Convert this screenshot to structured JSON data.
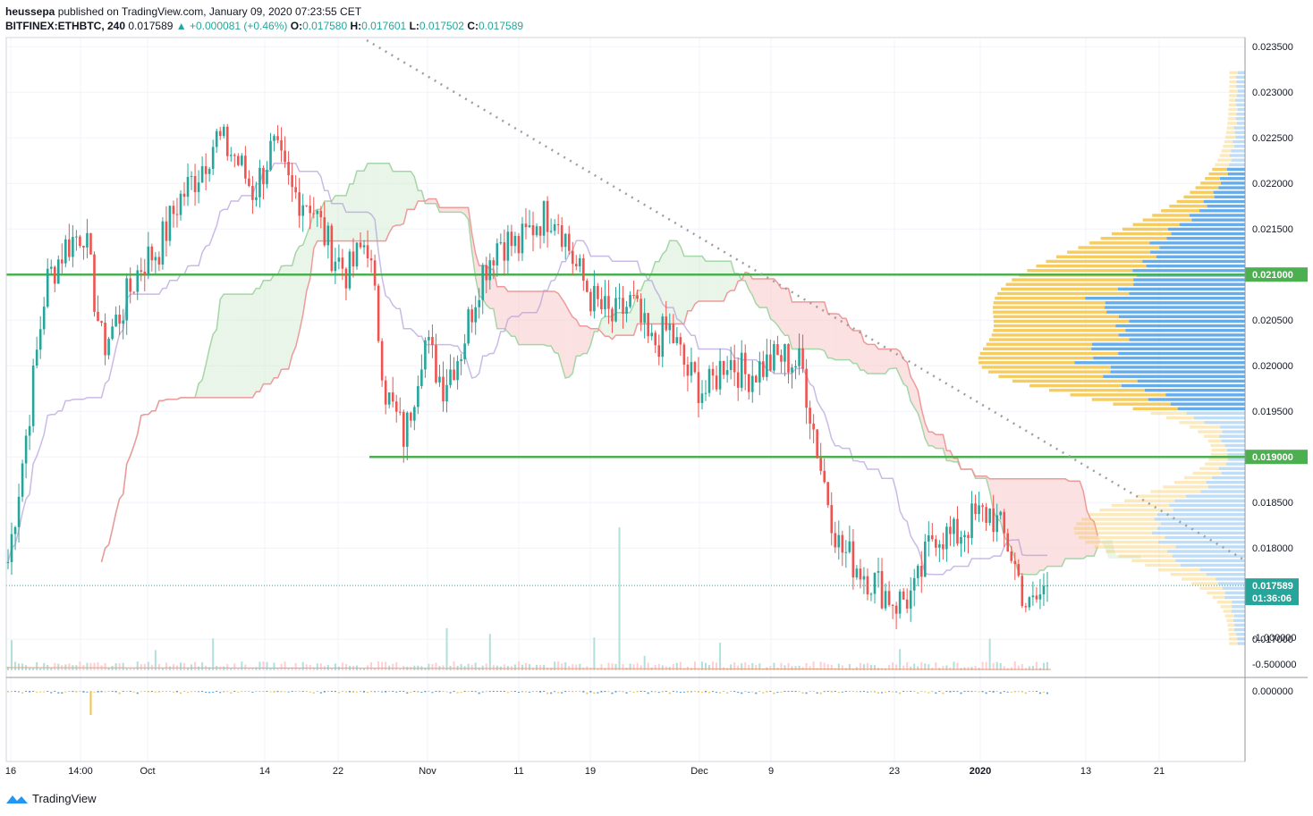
{
  "header": {
    "author": "heussepa",
    "published": "published on TradingView.com, January 09, 2020 07:23:55 CET",
    "symbol": "BITFINEX:ETHBTC, 240",
    "last": "0.017589",
    "change": "▲ +0.000081 (+0.46%)",
    "o_label": "O:",
    "o": "0.017580",
    "h_label": "H:",
    "h": "0.017601",
    "l_label": "L:",
    "l": "0.017502",
    "c_label": "C:",
    "c": "0.017589"
  },
  "footer": {
    "brand": "TradingView"
  },
  "colors": {
    "up": "#26a69a",
    "down": "#ef5350",
    "green_line": "#4caf50",
    "cloud_red": "#f8c9c9",
    "cloud_green": "#d5ecd5",
    "vp_blue": "#4a9ee8",
    "vp_yellow": "#f5c342"
  },
  "chart_data": {
    "type": "candlestick",
    "price_axis": {
      "labels": [
        "0.023500",
        "0.023000",
        "0.022500",
        "0.022000",
        "0.021500",
        "0.021000",
        "0.020500",
        "0.020000",
        "0.019500",
        "0.019000",
        "0.018500",
        "0.018000",
        "0.017589",
        "0.017000"
      ],
      "ticks": [
        0.0235,
        0.023,
        0.0225,
        0.022,
        0.0215,
        0.021,
        0.0205,
        0.02,
        0.0195,
        0.019,
        0.0185,
        0.018,
        0.017589,
        0.017
      ],
      "range": [
        0.0166,
        0.0236
      ]
    },
    "time_axis": [
      "16",
      "14:00",
      "Oct",
      "14",
      "22",
      "Nov",
      "11",
      "19",
      "Dec",
      "9",
      "23",
      "2020",
      "13",
      "21"
    ],
    "horizontal_levels": [
      {
        "price": 0.021,
        "label": "0.021000"
      },
      {
        "price": 0.019,
        "label": "0.019000"
      }
    ],
    "last_price": {
      "price": 0.017589,
      "label": "0.017589",
      "countdown": "01:36:06"
    },
    "close_path": [
      0.01785,
      0.0193,
      0.0209,
      0.0213,
      0.0215,
      0.0202,
      0.0206,
      0.0211,
      0.0213,
      0.0218,
      0.0221,
      0.0225,
      0.0223,
      0.0219,
      0.0224,
      0.0219,
      0.0218,
      0.0213,
      0.021,
      0.0214,
      0.0197,
      0.0192,
      0.0203,
      0.0198,
      0.0202,
      0.021,
      0.0214,
      0.0213,
      0.0216,
      0.0217,
      0.0211,
      0.0207,
      0.0205,
      0.0207,
      0.0202,
      0.0204,
      0.0199,
      0.0197,
      0.0201,
      0.0199,
      0.02,
      0.0201,
      0.02,
      0.0189,
      0.018,
      0.0178,
      0.0176,
      0.0174,
      0.0175,
      0.0182,
      0.0181,
      0.0183,
      0.0184,
      0.018,
      0.0173,
      0.01759
    ],
    "lower_indicator": {
      "labels": [
        "0.000000",
        "-0.500000",
        "-1.000000"
      ],
      "ticks": [
        0,
        -0.5,
        -1.0
      ]
    }
  }
}
